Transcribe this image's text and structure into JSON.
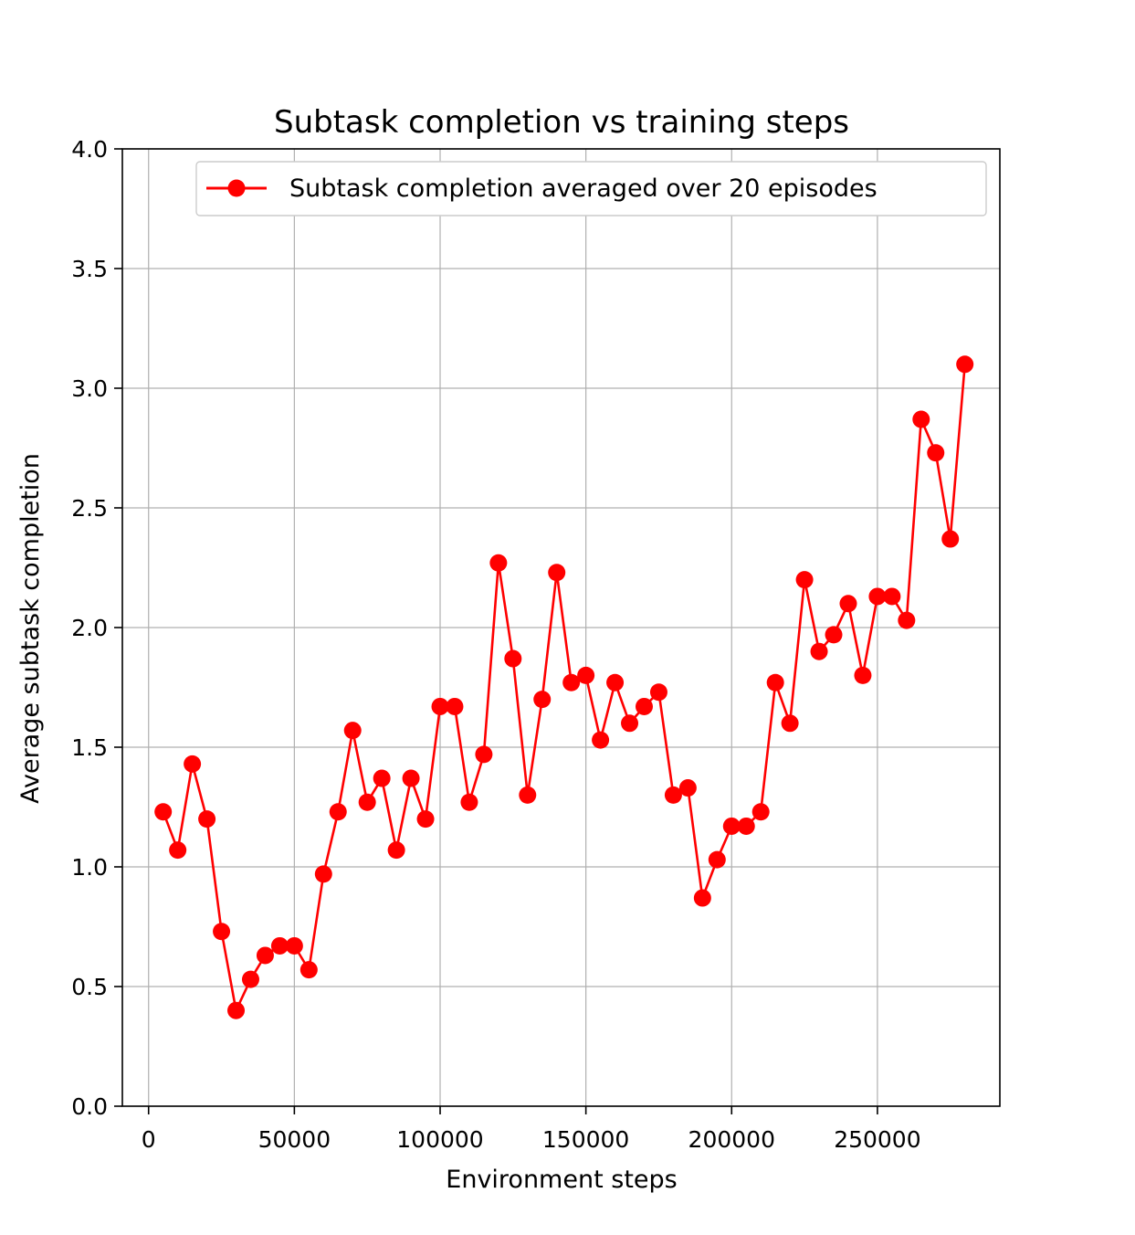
{
  "chart_data": {
    "type": "line",
    "title": "Subtask completion vs training steps",
    "xlabel": "Environment steps",
    "ylabel": "Average subtask completion",
    "xlim": [
      -9000,
      292000
    ],
    "ylim": [
      0.0,
      4.0
    ],
    "xticks": [
      0,
      50000,
      100000,
      150000,
      200000,
      250000
    ],
    "xtick_labels": [
      "0",
      "50000",
      "100000",
      "150000",
      "200000",
      "250000"
    ],
    "yticks": [
      0.0,
      0.5,
      1.0,
      1.5,
      2.0,
      2.5,
      3.0,
      3.5,
      4.0
    ],
    "ytick_labels": [
      "0.0",
      "0.5",
      "1.0",
      "1.5",
      "2.0",
      "2.5",
      "3.0",
      "3.5",
      "4.0"
    ],
    "grid": true,
    "legend_position": "top-right",
    "series": [
      {
        "name": "Subtask completion averaged over 20 episodes",
        "color": "#ff0000",
        "marker": "circle",
        "x": [
          5000,
          10000,
          15000,
          20000,
          25000,
          30000,
          35000,
          40000,
          45000,
          50000,
          55000,
          60000,
          65000,
          70000,
          75000,
          80000,
          85000,
          90000,
          95000,
          100000,
          105000,
          110000,
          115000,
          120000,
          125000,
          130000,
          135000,
          140000,
          145000,
          150000,
          155000,
          160000,
          165000,
          170000,
          175000,
          180000,
          185000,
          190000,
          195000,
          200000,
          205000,
          210000,
          215000,
          220000,
          225000,
          230000,
          235000,
          240000,
          245000,
          250000,
          255000,
          260000,
          265000,
          270000,
          275000,
          280000
        ],
        "y": [
          1.23,
          1.07,
          1.43,
          1.2,
          0.73,
          0.4,
          0.53,
          0.63,
          0.67,
          0.67,
          0.57,
          0.97,
          1.23,
          1.57,
          1.27,
          1.37,
          1.07,
          1.37,
          1.2,
          1.67,
          1.67,
          1.27,
          1.47,
          2.27,
          1.87,
          1.3,
          1.7,
          2.23,
          1.77,
          1.8,
          1.53,
          1.77,
          1.6,
          1.67,
          1.73,
          1.3,
          1.33,
          0.87,
          1.03,
          1.17,
          1.17,
          1.23,
          1.77,
          1.6,
          2.2,
          1.9,
          1.97,
          2.1,
          1.8,
          2.13,
          2.13,
          2.03,
          2.87,
          2.73,
          2.37,
          3.1
        ]
      }
    ]
  }
}
